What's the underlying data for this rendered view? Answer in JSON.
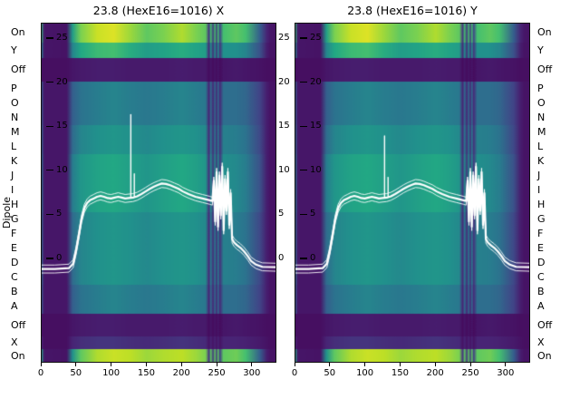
{
  "figure": {
    "background": "#ffffff",
    "text_color": "#000000"
  },
  "chart_data": {
    "type": "heatmap",
    "dipole_axis_label": "Dipole",
    "panels": [
      {
        "title": "23.8 (HexE16=1016) X",
        "spikes": [
          [
            128,
            16.3
          ],
          [
            133,
            9.6
          ]
        ]
      },
      {
        "title": "23.8 (HexE16=1016) Y",
        "spikes": [
          [
            128,
            13.9
          ],
          [
            133,
            9.2
          ]
        ]
      }
    ],
    "x_axis": {
      "ticks": [
        0,
        50,
        100,
        150,
        200,
        250,
        300
      ],
      "range": [
        0,
        335
      ]
    },
    "y_axis_inner": {
      "ticks": [
        25,
        20,
        15,
        10,
        5,
        0
      ],
      "range": [
        -11.8,
        26.7
      ]
    },
    "rows": [
      {
        "label": "On",
        "weight": 22,
        "profile": "band_on_top"
      },
      {
        "label": "Y",
        "weight": 17,
        "profile": "band_y"
      },
      {
        "label": "Off",
        "weight": 26,
        "profile": "band_off"
      },
      {
        "label": "P",
        "weight": 16,
        "profile": "blue_a"
      },
      {
        "label": "O",
        "weight": 16,
        "profile": "blue_a"
      },
      {
        "label": "N",
        "weight": 16,
        "profile": "blue_a"
      },
      {
        "label": "M",
        "weight": 16,
        "profile": "blue_b"
      },
      {
        "label": "L",
        "weight": 16,
        "profile": "blue_b"
      },
      {
        "label": "K",
        "weight": 16,
        "profile": "blue_c"
      },
      {
        "label": "J",
        "weight": 16,
        "profile": "blue_c"
      },
      {
        "label": "I",
        "weight": 16,
        "profile": "blue_c"
      },
      {
        "label": "H",
        "weight": 16,
        "profile": "blue_c"
      },
      {
        "label": "G",
        "weight": 16,
        "profile": "blue_b"
      },
      {
        "label": "F",
        "weight": 16,
        "profile": "blue_b"
      },
      {
        "label": "E",
        "weight": 16,
        "profile": "blue_b"
      },
      {
        "label": "D",
        "weight": 16,
        "profile": "blue_b"
      },
      {
        "label": "C",
        "weight": 16,
        "profile": "blue_b"
      },
      {
        "label": "B",
        "weight": 16,
        "profile": "blue_a"
      },
      {
        "label": "A",
        "weight": 16,
        "profile": "blue_a"
      },
      {
        "label": "Off",
        "weight": 25,
        "profile": "band_off"
      },
      {
        "label": "X",
        "weight": 14,
        "profile": "band_x"
      },
      {
        "label": "On",
        "weight": 15,
        "profile": "band_on_bottom"
      }
    ],
    "x_bins": [
      0,
      0.015,
      0.11,
      0.135,
      0.17,
      0.24,
      0.31,
      0.38,
      0.45,
      0.52,
      0.6,
      0.66,
      0.7,
      0.714,
      0.722,
      0.731,
      0.739,
      0.746,
      0.753,
      0.76,
      0.775,
      0.83,
      0.87,
      0.93,
      0.96,
      0.975,
      1.0
    ],
    "profiles": {
      "band_on_top": [
        0.65,
        0.06,
        0.05,
        0.55,
        0.8,
        0.92,
        0.95,
        0.85,
        0.75,
        0.8,
        0.88,
        0.8,
        0.75,
        0.15,
        0.7,
        0.15,
        0.7,
        0.15,
        0.7,
        0.2,
        0.7,
        0.75,
        0.7,
        0.3,
        0.1,
        0.06,
        0.05
      ],
      "band_y": [
        0.45,
        0.06,
        0.05,
        0.45,
        0.6,
        0.68,
        0.7,
        0.62,
        0.55,
        0.58,
        0.62,
        0.58,
        0.55,
        0.12,
        0.5,
        0.12,
        0.5,
        0.12,
        0.5,
        0.15,
        0.5,
        0.5,
        0.45,
        0.25,
        0.08,
        0.05,
        0.05
      ],
      "band_off": [
        0.05,
        0.04,
        0.04,
        0.06,
        0.07,
        0.08,
        0.08,
        0.07,
        0.07,
        0.07,
        0.08,
        0.07,
        0.07,
        0.03,
        0.06,
        0.03,
        0.06,
        0.03,
        0.06,
        0.03,
        0.06,
        0.07,
        0.06,
        0.05,
        0.04,
        0.04,
        0.04
      ],
      "blue_a": [
        0.3,
        0.06,
        0.06,
        0.3,
        0.38,
        0.42,
        0.45,
        0.42,
        0.4,
        0.42,
        0.45,
        0.42,
        0.4,
        0.1,
        0.35,
        0.1,
        0.35,
        0.1,
        0.35,
        0.12,
        0.36,
        0.36,
        0.33,
        0.2,
        0.08,
        0.05,
        0.05
      ],
      "blue_b": [
        0.35,
        0.06,
        0.06,
        0.35,
        0.45,
        0.5,
        0.52,
        0.5,
        0.47,
        0.5,
        0.52,
        0.5,
        0.47,
        0.12,
        0.42,
        0.12,
        0.42,
        0.12,
        0.42,
        0.14,
        0.43,
        0.42,
        0.38,
        0.22,
        0.08,
        0.05,
        0.05
      ],
      "blue_c": [
        0.4,
        0.06,
        0.06,
        0.42,
        0.52,
        0.58,
        0.6,
        0.56,
        0.52,
        0.56,
        0.6,
        0.56,
        0.52,
        0.14,
        0.48,
        0.14,
        0.48,
        0.14,
        0.48,
        0.16,
        0.49,
        0.47,
        0.42,
        0.25,
        0.08,
        0.05,
        0.05
      ],
      "band_x": [
        0.1,
        0.04,
        0.04,
        0.1,
        0.13,
        0.15,
        0.15,
        0.13,
        0.12,
        0.13,
        0.15,
        0.13,
        0.12,
        0.05,
        0.1,
        0.05,
        0.1,
        0.05,
        0.1,
        0.05,
        0.1,
        0.1,
        0.09,
        0.07,
        0.05,
        0.04,
        0.04
      ],
      "band_on_bottom": [
        0.6,
        0.06,
        0.05,
        0.5,
        0.75,
        0.88,
        0.92,
        0.9,
        0.85,
        0.88,
        0.9,
        0.85,
        0.8,
        0.15,
        0.75,
        0.15,
        0.75,
        0.15,
        0.75,
        0.18,
        0.75,
        0.78,
        0.7,
        0.3,
        0.08,
        0.05,
        0.05
      ]
    },
    "colormap": {
      "name": "viridis",
      "stops": [
        "#440154",
        "#482475",
        "#414487",
        "#355f8d",
        "#2a788e",
        "#21918c",
        "#22a884",
        "#44bf70",
        "#7ad151",
        "#bddf26",
        "#fde725"
      ]
    },
    "overlay_line": {
      "color": "#ffffff",
      "points": [
        [
          0,
          -1.2
        ],
        [
          20,
          -1.2
        ],
        [
          40,
          -1.1
        ],
        [
          46,
          -0.6
        ],
        [
          50,
          0.8
        ],
        [
          54,
          2.6
        ],
        [
          58,
          4.5
        ],
        [
          62,
          5.7
        ],
        [
          66,
          6.3
        ],
        [
          70,
          6.6
        ],
        [
          75,
          6.8
        ],
        [
          80,
          7.0
        ],
        [
          85,
          7.1
        ],
        [
          90,
          7.0
        ],
        [
          95,
          6.85
        ],
        [
          100,
          6.8
        ],
        [
          105,
          6.9
        ],
        [
          110,
          7.0
        ],
        [
          115,
          6.9
        ],
        [
          120,
          6.8
        ],
        [
          125,
          6.85
        ],
        [
          131,
          6.9
        ],
        [
          137,
          7.05
        ],
        [
          143,
          7.3
        ],
        [
          149,
          7.6
        ],
        [
          155,
          7.9
        ],
        [
          161,
          8.15
        ],
        [
          167,
          8.35
        ],
        [
          172,
          8.5
        ],
        [
          178,
          8.45
        ],
        [
          184,
          8.3
        ],
        [
          190,
          8.1
        ],
        [
          196,
          7.9
        ],
        [
          202,
          7.6
        ],
        [
          210,
          7.3
        ],
        [
          220,
          7.0
        ],
        [
          230,
          6.8
        ],
        [
          240,
          6.6
        ],
        [
          244,
          6.5
        ],
        [
          246,
          8.8
        ],
        [
          248,
          4.2
        ],
        [
          250,
          9.8
        ],
        [
          252,
          3.6
        ],
        [
          254,
          9.4
        ],
        [
          256,
          4.9
        ],
        [
          258,
          10.4
        ],
        [
          260,
          3.2
        ],
        [
          262,
          9.0
        ],
        [
          264,
          5.4
        ],
        [
          266,
          9.8
        ],
        [
          268,
          3.8
        ],
        [
          270,
          7.4
        ],
        [
          272,
          2.2
        ],
        [
          275,
          1.8
        ],
        [
          279,
          1.5
        ],
        [
          284,
          1.2
        ],
        [
          289,
          0.8
        ],
        [
          294,
          0.3
        ],
        [
          299,
          -0.3
        ],
        [
          306,
          -0.7
        ],
        [
          315,
          -0.95
        ],
        [
          335,
          -1.0
        ]
      ]
    }
  }
}
